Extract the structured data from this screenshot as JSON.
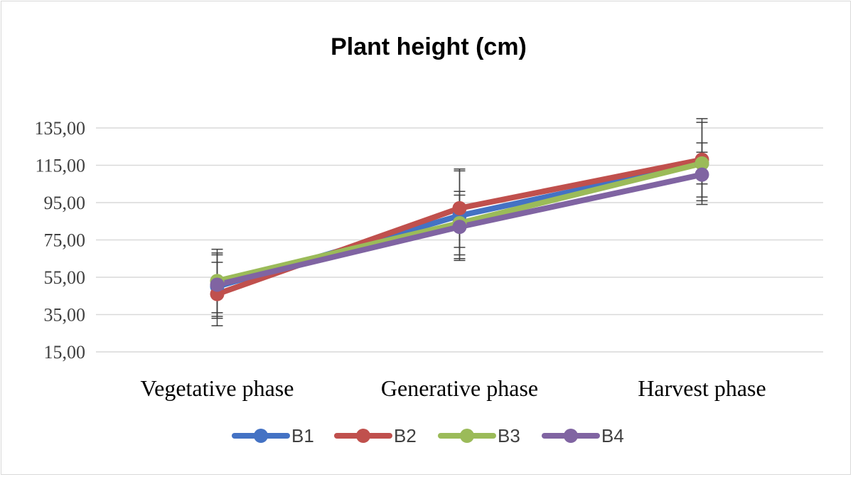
{
  "chart_data": {
    "type": "line",
    "title": "Plant height (cm)",
    "xlabel": "",
    "ylabel": "",
    "categories": [
      "Vegetative phase",
      "Generative phase",
      "Harvest phase"
    ],
    "y_ticks": [
      "15,00",
      "35,00",
      "55,00",
      "75,00",
      "95,00",
      "115,00",
      "135,00"
    ],
    "ylim": [
      15,
      135
    ],
    "grid": true,
    "legend_position": "bottom",
    "series": [
      {
        "name": "B1",
        "color": "#4472c4",
        "values": [
          50,
          88,
          116
        ],
        "error": [
          17,
          24,
          22
        ]
      },
      {
        "name": "B2",
        "color": "#c0504d",
        "values": [
          46,
          92,
          118
        ],
        "error": [
          17,
          21,
          22
        ]
      },
      {
        "name": "B3",
        "color": "#9bbb59",
        "values": [
          53,
          84,
          116
        ],
        "error": [
          17,
          17,
          11
        ]
      },
      {
        "name": "B4",
        "color": "#8064a2",
        "values": [
          51,
          82,
          110
        ],
        "error": [
          17,
          17,
          12
        ]
      }
    ]
  }
}
